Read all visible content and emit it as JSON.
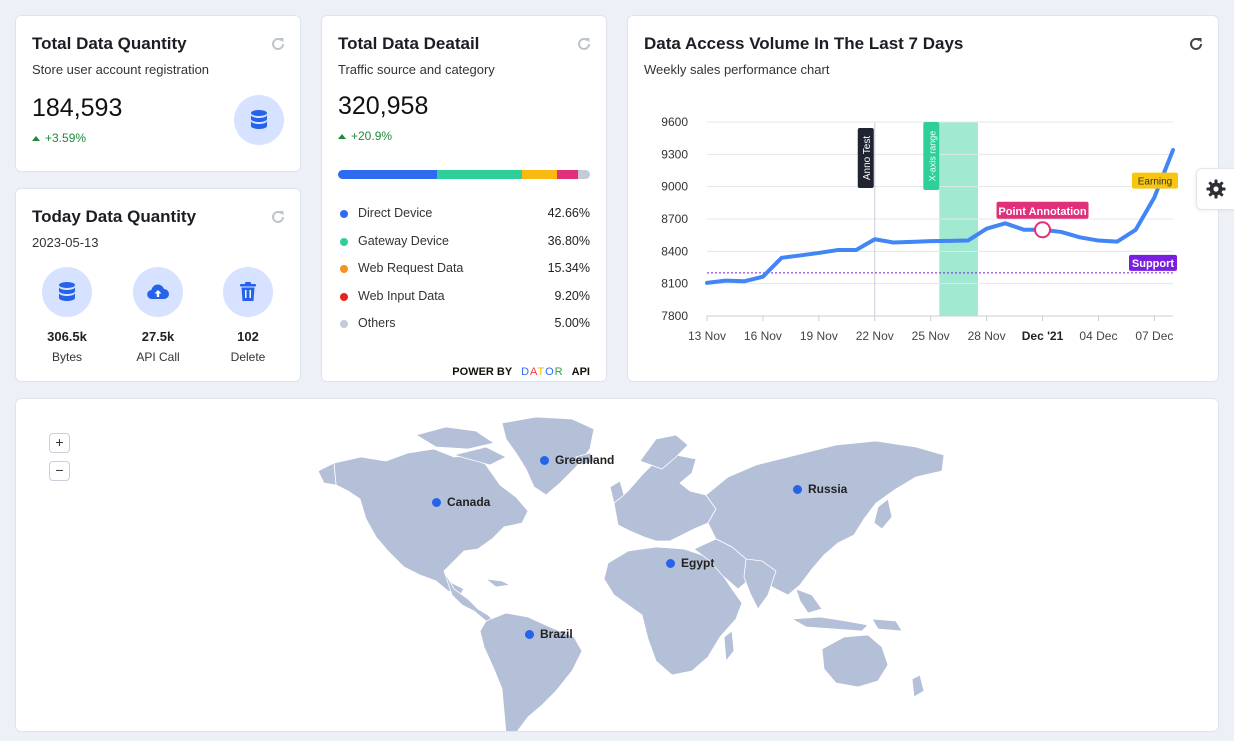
{
  "card_total": {
    "title": "Total Data Quantity",
    "subtitle": "Store user account registration",
    "value": "184,593",
    "change": "+3.59%",
    "icon": "database-icon"
  },
  "card_detail": {
    "title": "Total Data Deatail",
    "subtitle": "Traffic source and category",
    "value": "320,958",
    "change": "+20.9%",
    "segments": [
      {
        "name": "Direct Device",
        "value": "42.66%",
        "pct": 42.66,
        "color": "#2f6bf0"
      },
      {
        "name": "Gateway Device",
        "value": "36.80%",
        "pct": 36.8,
        "color": "#2ecf98"
      },
      {
        "name": "Web Request Data",
        "value": "15.34%",
        "pct": 15.34,
        "color": "#f7b912"
      },
      {
        "name": "Web Input Data",
        "value": "9.20%",
        "pct": 9.2,
        "color": "#e0307a"
      },
      {
        "name": "Others",
        "value": "5.00%",
        "pct": 5.0,
        "color": "#c4cad8"
      }
    ],
    "legend_dot_colors": [
      "#2f6bf0",
      "#2ecf98",
      "#f7931e",
      "#e5251c",
      "#c4cad8"
    ],
    "powered_by": "POWER BY",
    "brand_letters": [
      {
        "ch": "D",
        "color": "#2f6bf0"
      },
      {
        "ch": "A",
        "color": "#ee3b3b"
      },
      {
        "ch": "T",
        "color": "#f5b400"
      },
      {
        "ch": "O",
        "color": "#2f6bf0"
      },
      {
        "ch": "R",
        "color": "#2e9e4f"
      }
    ],
    "api": "API"
  },
  "card_today": {
    "title": "Today Data Quantity",
    "date": "2023-05-13",
    "stats": [
      {
        "value": "306.5k",
        "label": "Bytes",
        "icon": "database-icon"
      },
      {
        "value": "27.5k",
        "label": "API Call",
        "icon": "cloud-upload-icon"
      },
      {
        "value": "102",
        "label": "Delete",
        "icon": "trash-icon"
      }
    ]
  },
  "card_chart": {
    "title": "Data Access Volume In The Last 7 Days",
    "subtitle": "Weekly sales performance chart"
  },
  "chart_data": {
    "type": "line",
    "x": [
      "13 Nov",
      "14 Nov",
      "15 Nov",
      "16 Nov",
      "17 Nov",
      "18 Nov",
      "19 Nov",
      "20 Nov",
      "21 Nov",
      "22 Nov",
      "23 Nov",
      "24 Nov",
      "25 Nov",
      "26 Nov",
      "27 Nov",
      "28 Nov",
      "29 Nov",
      "30 Nov",
      "Dec '21",
      "02 Dec",
      "03 Dec",
      "04 Dec",
      "05 Dec",
      "06 Dec",
      "07 Dec",
      "08 Dec"
    ],
    "values": [
      8107,
      8128,
      8122,
      8165,
      8340,
      8362,
      8385,
      8412,
      8412,
      8512,
      8482,
      8488,
      8495,
      8497,
      8500,
      8610,
      8660,
      8600,
      8600,
      8580,
      8530,
      8500,
      8490,
      8600,
      8900,
      9340
    ],
    "xticks": [
      "13 Nov",
      "16 Nov",
      "19 Nov",
      "22 Nov",
      "25 Nov",
      "28 Nov",
      "Dec '21",
      "04 Dec",
      "07 Dec"
    ],
    "ylim": [
      7800,
      9600
    ],
    "yticks": [
      7800,
      8100,
      8400,
      8700,
      9000,
      9300,
      9600
    ],
    "line_color": "#4285f4",
    "annotations": {
      "vertical_line": {
        "x": "22 Nov",
        "label": "Anno Test",
        "color": "#1f2430"
      },
      "x_range": {
        "from": "26 Nov",
        "to": "27 Nov",
        "label": "X-axis range",
        "color": "#2ecf98"
      },
      "point": {
        "x": "Dec '21",
        "y": 8600,
        "label": "Point Annotation",
        "color": "#e0307a"
      },
      "y_line": {
        "y": 8200,
        "label": "Support",
        "color": "#7a1fe0"
      },
      "y_label": {
        "y": 9000,
        "label": "Earning",
        "color": "#f8c611"
      }
    },
    "grid": true
  },
  "map": {
    "zoom_in": "+",
    "zoom_out": "−",
    "markers": [
      {
        "name": "Greenland"
      },
      {
        "name": "Canada"
      },
      {
        "name": "Russia"
      },
      {
        "name": "Egypt"
      },
      {
        "name": "Brazil"
      }
    ],
    "land_color": "#b4bfd8"
  }
}
